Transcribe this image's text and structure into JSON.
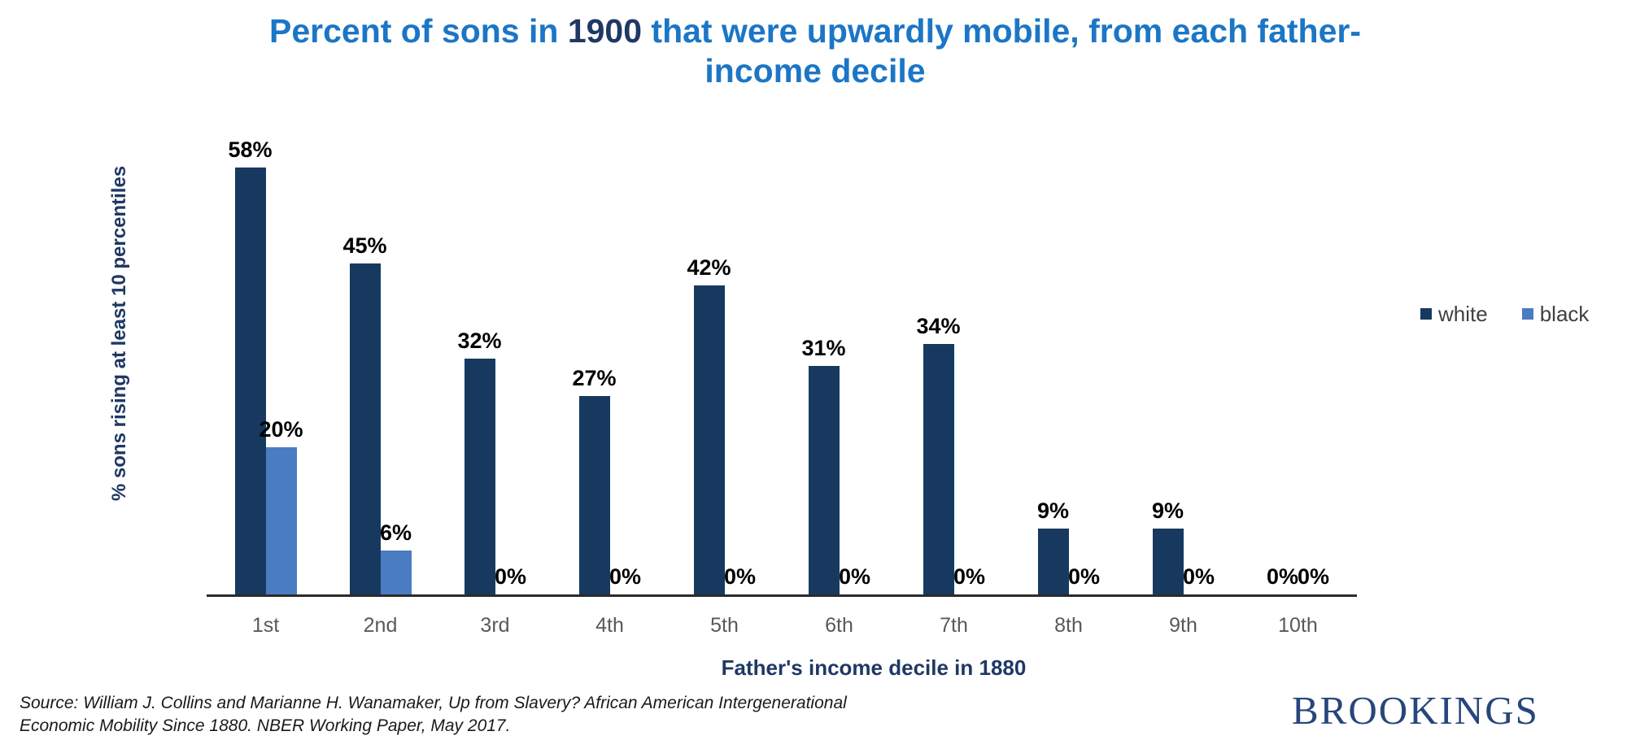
{
  "title": {
    "part1": "Percent of sons in ",
    "year": "1900",
    "part2": " that were upwardly mobile, from each father-income decile"
  },
  "chart_data": {
    "type": "bar",
    "title": "Percent of sons in 1900 that were upwardly mobile, from each father-income decile",
    "categories": [
      "1st",
      "2nd",
      "3rd",
      "4th",
      "5th",
      "6th",
      "7th",
      "8th",
      "9th",
      "10th"
    ],
    "series": [
      {
        "name": "white",
        "color": "#17395f",
        "values": [
          58,
          45,
          32,
          27,
          42,
          31,
          34,
          9,
          9,
          0
        ]
      },
      {
        "name": "black",
        "color": "#4a7cc1",
        "values": [
          20,
          6,
          0,
          0,
          0,
          0,
          0,
          0,
          0,
          0
        ]
      }
    ],
    "value_suffix": "%",
    "data_labels": true,
    "xlabel": "Father's income decile in 1880",
    "ylabel": "% sons rising at least 10 percentiles",
    "ylim": [
      0,
      64
    ],
    "grid": false,
    "y_axis_ticks": false,
    "legend_position": "right-middle"
  },
  "source": {
    "line1": "Source: William J. Collins and Marianne H. Wanamaker, Up from Slavery? African American Intergenerational",
    "line2": "Economic Mobility Since 1880. NBER Working Paper, May 2017."
  },
  "logo": {
    "text": "BROOKINGS"
  },
  "colors": {
    "title_blue": "#1b76c6",
    "navy_text": "#1f3864",
    "bar_white": "#17395f",
    "bar_black": "#4a7cc1",
    "category_gray": "#595959",
    "legend_text": "#404040",
    "axis_line": "#2b2b2b",
    "data_label": "#000000",
    "logo_navy": "#26467c"
  }
}
